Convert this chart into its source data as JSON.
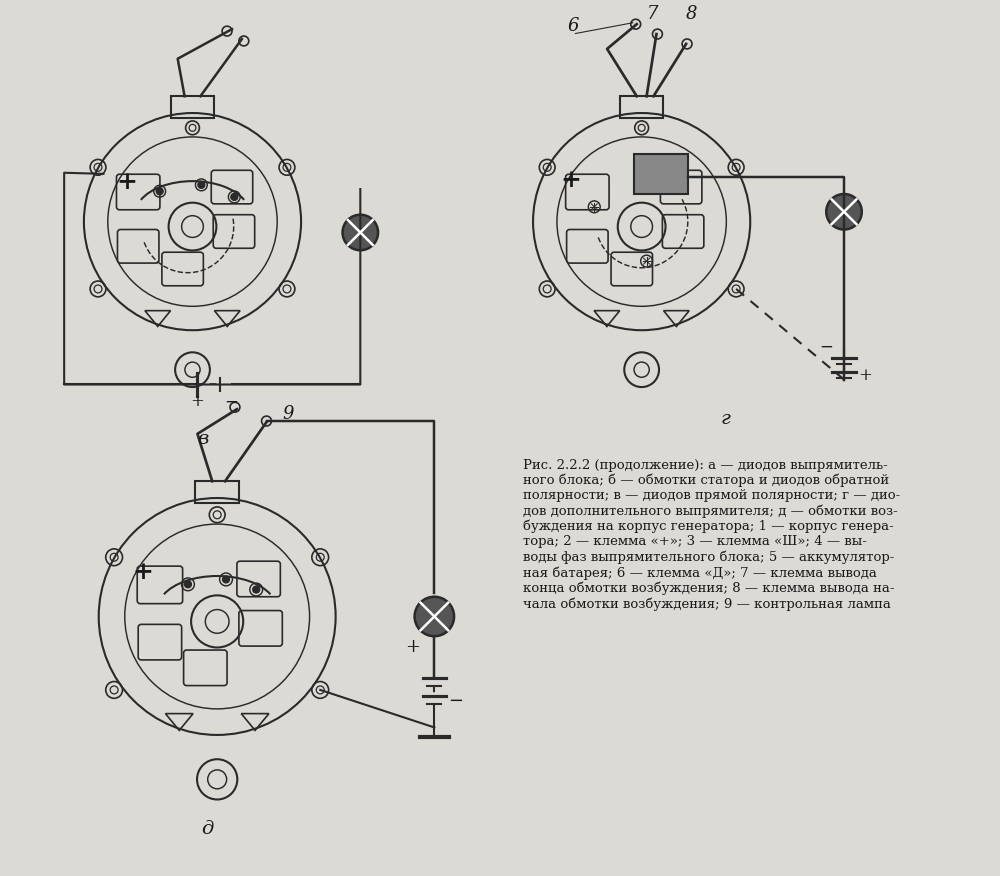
{
  "bg_color": "#d8d8d8",
  "page_color": "#e8e6e0",
  "line_color": "#2a2a2a",
  "text_color": "#1a1a1a",
  "title": "",
  "caption_text": "Рис. 2.2.2 (продолжение): а — диодов выпрямитель-\nного блока; б — обмотки статора и диодов обратной\nполярности; в — диодов прямой полярности; г — дио-\nдов дополнительного выпрямителя; д — обмотки воз-\nбуждения на корпус генератора; 1 — корпус генера-\nтора; 2 — клемма «+»; 3 — клемма «Ш»; 4 — вы-\nводы фаз выпрямительного блока; 5 — аккумулятор-\nная батарея; 6 — клемма «Д»; 7 — клемма вывода\nконца обмотки возбуждения; 8 — клемма вывода на-\nчала обмотки возбуждения; 9 — контрольная лампа",
  "label_v": "в",
  "label_g": "г",
  "label_d": "д",
  "label_6": "6",
  "label_7": "7",
  "label_8": "8",
  "label_9": "9"
}
